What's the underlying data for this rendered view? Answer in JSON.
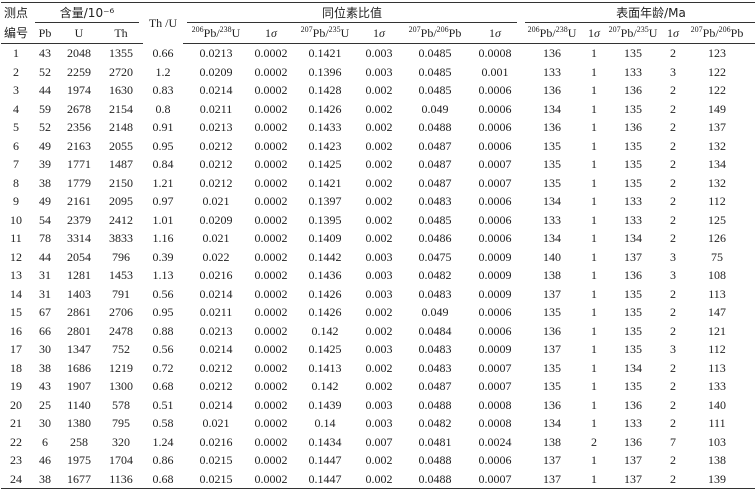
{
  "header": {
    "point": "测点",
    "id": "编号",
    "content_group": "含量/10⁻⁶",
    "th_u": "Th /U",
    "ratio_group": "同位素比值",
    "age_group": "表面年龄/Ma",
    "sub": {
      "pb": "Pb",
      "u": "U",
      "th": "Th",
      "r206_238": "Pb/",
      "r206_238_iso_a": "206",
      "r206_238_iso_b": "238",
      "r206_238_tail": "U",
      "sigma": "σ",
      "one": "1",
      "r207_235_iso_a": "207",
      "r207_235_iso_b": "235",
      "r207_206_iso_a": "207",
      "r207_206_iso_b": "206",
      "tail_u": "U",
      "tail_pb": "Pb"
    }
  },
  "rows": [
    [
      "1",
      "43",
      "2048",
      "1355",
      "0.66",
      "0.0213",
      "0.0002",
      "0.1421",
      "0.003",
      "0.0485",
      "0.0008",
      "136",
      "1",
      "135",
      "2",
      "123",
      "40"
    ],
    [
      "2",
      "52",
      "2259",
      "2720",
      "1.2",
      "0.0209",
      "0.0002",
      "0.1396",
      "0.003",
      "0.0485",
      "0.001",
      "133",
      "1",
      "133",
      "3",
      "122",
      "46"
    ],
    [
      "3",
      "44",
      "1974",
      "1630",
      "0.83",
      "0.0214",
      "0.0002",
      "0.1428",
      "0.002",
      "0.0485",
      "0.0006",
      "136",
      "1",
      "136",
      "2",
      "122",
      "30"
    ],
    [
      "4",
      "59",
      "2678",
      "2154",
      "0.8",
      "0.0211",
      "0.0002",
      "0.1426",
      "0.002",
      "0.049",
      "0.0006",
      "134",
      "1",
      "135",
      "2",
      "149",
      "28"
    ],
    [
      "5",
      "52",
      "2356",
      "2148",
      "0.91",
      "0.0213",
      "0.0002",
      "0.1433",
      "0.002",
      "0.0488",
      "0.0006",
      "136",
      "1",
      "136",
      "2",
      "137",
      "30"
    ],
    [
      "6",
      "49",
      "2163",
      "2055",
      "0.95",
      "0.0212",
      "0.0002",
      "0.1423",
      "0.002",
      "0.0487",
      "0.0006",
      "135",
      "1",
      "135",
      "2",
      "132",
      "30"
    ],
    [
      "7",
      "39",
      "1771",
      "1487",
      "0.84",
      "0.0212",
      "0.0002",
      "0.1425",
      "0.002",
      "0.0487",
      "0.0007",
      "135",
      "1",
      "135",
      "2",
      "134",
      "32"
    ],
    [
      "8",
      "38",
      "1779",
      "2150",
      "1.21",
      "0.0212",
      "0.0002",
      "0.1421",
      "0.002",
      "0.0487",
      "0.0007",
      "135",
      "1",
      "135",
      "2",
      "132",
      "32"
    ],
    [
      "9",
      "49",
      "2161",
      "2095",
      "0.97",
      "0.021",
      "0.0002",
      "0.1397",
      "0.002",
      "0.0483",
      "0.0006",
      "134",
      "1",
      "133",
      "2",
      "112",
      "29"
    ],
    [
      "10",
      "54",
      "2379",
      "2412",
      "1.01",
      "0.0209",
      "0.0002",
      "0.1395",
      "0.002",
      "0.0485",
      "0.0006",
      "133",
      "1",
      "133",
      "2",
      "125",
      "30"
    ],
    [
      "11",
      "78",
      "3314",
      "3833",
      "1.16",
      "0.021",
      "0.0002",
      "0.1409",
      "0.002",
      "0.0486",
      "0.0006",
      "134",
      "1",
      "134",
      "2",
      "126",
      "28"
    ],
    [
      "12",
      "44",
      "2054",
      "796",
      "0.39",
      "0.022",
      "0.0002",
      "0.1442",
      "0.003",
      "0.0475",
      "0.0009",
      "140",
      "1",
      "137",
      "3",
      "75",
      "43"
    ],
    [
      "13",
      "31",
      "1281",
      "1453",
      "1.13",
      "0.0216",
      "0.0002",
      "0.1436",
      "0.003",
      "0.0482",
      "0.0009",
      "138",
      "1",
      "136",
      "3",
      "108",
      "45"
    ],
    [
      "14",
      "31",
      "1403",
      "791",
      "0.56",
      "0.0214",
      "0.0002",
      "0.1426",
      "0.003",
      "0.0483",
      "0.0009",
      "137",
      "1",
      "135",
      "2",
      "113",
      "42"
    ],
    [
      "15",
      "67",
      "2861",
      "2706",
      "0.95",
      "0.0211",
      "0.0002",
      "0.1426",
      "0.002",
      "0.049",
      "0.0006",
      "135",
      "1",
      "135",
      "2",
      "147",
      "29"
    ],
    [
      "16",
      "66",
      "2801",
      "2478",
      "0.88",
      "0.0213",
      "0.0002",
      "0.142",
      "0.002",
      "0.0484",
      "0.0006",
      "136",
      "1",
      "135",
      "2",
      "121",
      "28"
    ],
    [
      "17",
      "30",
      "1347",
      "752",
      "0.56",
      "0.0214",
      "0.0002",
      "0.1425",
      "0.003",
      "0.0483",
      "0.0009",
      "137",
      "1",
      "135",
      "3",
      "112",
      "44"
    ],
    [
      "18",
      "38",
      "1686",
      "1219",
      "0.72",
      "0.0212",
      "0.0002",
      "0.1413",
      "0.002",
      "0.0483",
      "0.0007",
      "135",
      "1",
      "134",
      "2",
      "113",
      "33"
    ],
    [
      "19",
      "43",
      "1907",
      "1300",
      "0.68",
      "0.0212",
      "0.0002",
      "0.142",
      "0.002",
      "0.0487",
      "0.0007",
      "135",
      "1",
      "135",
      "2",
      "133",
      "35"
    ],
    [
      "20",
      "25",
      "1140",
      "578",
      "0.51",
      "0.0214",
      "0.0002",
      "0.1439",
      "0.003",
      "0.0488",
      "0.0008",
      "136",
      "1",
      "136",
      "2",
      "140",
      "39"
    ],
    [
      "21",
      "30",
      "1380",
      "795",
      "0.58",
      "0.021",
      "0.0002",
      "0.14",
      "0.003",
      "0.0482",
      "0.0008",
      "134",
      "1",
      "133",
      "2",
      "111",
      "41"
    ],
    [
      "22",
      "6",
      "258",
      "320",
      "1.24",
      "0.0216",
      "0.0002",
      "0.1434",
      "0.007",
      "0.0481",
      "0.0024",
      "138",
      "2",
      "136",
      "7",
      "103",
      "117"
    ],
    [
      "23",
      "46",
      "1975",
      "1704",
      "0.86",
      "0.0215",
      "0.0002",
      "0.1447",
      "0.002",
      "0.0488",
      "0.0006",
      "137",
      "1",
      "137",
      "2",
      "138",
      "30"
    ],
    [
      "24",
      "38",
      "1677",
      "1136",
      "0.68",
      "0.0215",
      "0.0002",
      "0.1447",
      "0.002",
      "0.0488",
      "0.0007",
      "137",
      "1",
      "137",
      "2",
      "139",
      "32"
    ]
  ]
}
